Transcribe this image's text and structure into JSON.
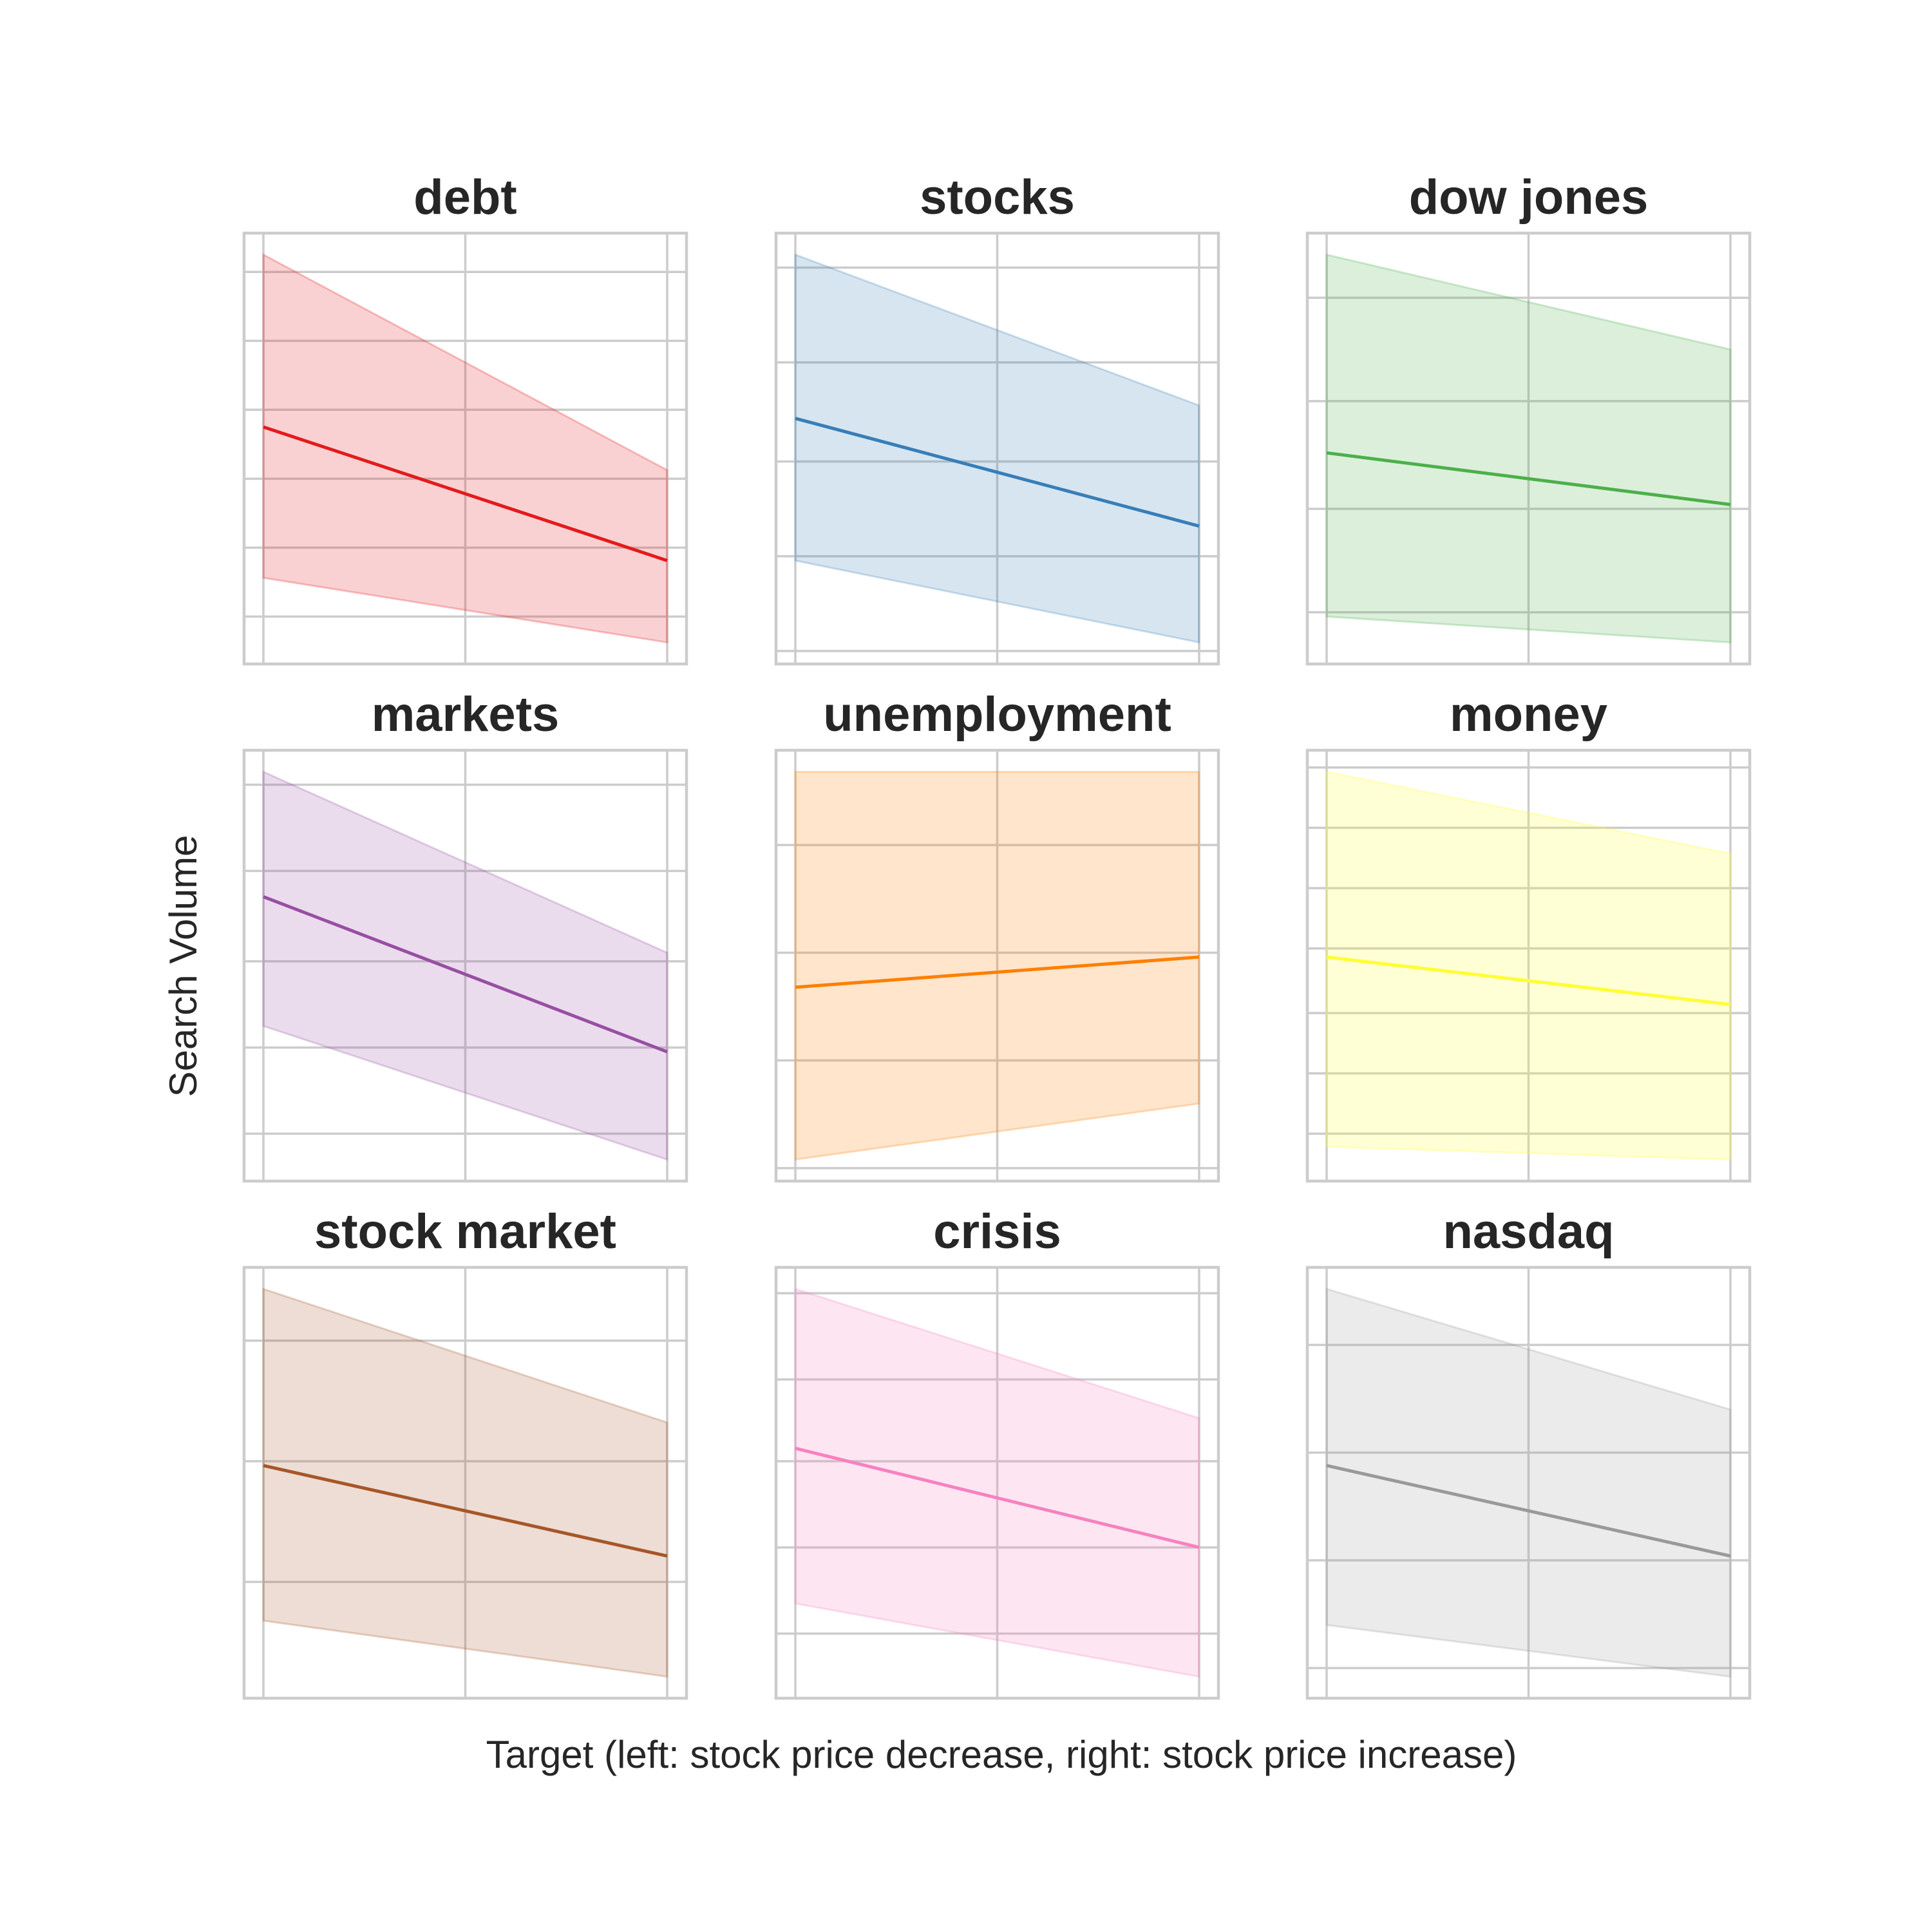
{
  "chart_data": {
    "type": "line",
    "xlabel": "Target (left: stock price decrease, right: stock price increase)",
    "ylabel": "Search Volume",
    "x": [
      0,
      1
    ],
    "grid": true,
    "panels": [
      {
        "title": "debt",
        "color": "#e41a1c",
        "ylim": [
          0.0,
          1.0
        ],
        "yticks": [
          0.11,
          0.27,
          0.43,
          0.59,
          0.75,
          0.91
        ],
        "mean": [
          0.55,
          0.24
        ],
        "lower": [
          0.2,
          0.05
        ],
        "upper": [
          0.95,
          0.45
        ]
      },
      {
        "title": "stocks",
        "color": "#377eb8",
        "ylim": [
          0.0,
          1.0
        ],
        "yticks": [
          0.03,
          0.25,
          0.47,
          0.7,
          0.92
        ],
        "mean": [
          0.57,
          0.32
        ],
        "lower": [
          0.24,
          0.05
        ],
        "upper": [
          0.95,
          0.6
        ]
      },
      {
        "title": "dow jones",
        "color": "#4daf4a",
        "ylim": [
          0.0,
          1.0
        ],
        "yticks": [
          0.12,
          0.36,
          0.61,
          0.85
        ],
        "mean": [
          0.49,
          0.37
        ],
        "lower": [
          0.11,
          0.05
        ],
        "upper": [
          0.95,
          0.73
        ]
      },
      {
        "title": "markets",
        "color": "#984ea3",
        "ylim": [
          0.0,
          1.0
        ],
        "yticks": [
          0.11,
          0.31,
          0.51,
          0.72,
          0.92
        ],
        "mean": [
          0.66,
          0.3
        ],
        "lower": [
          0.36,
          0.05
        ],
        "upper": [
          0.95,
          0.53
        ]
      },
      {
        "title": "unemployment",
        "color": "#ff7f00",
        "ylim": [
          0.0,
          1.0
        ],
        "yticks": [
          0.03,
          0.28,
          0.53,
          0.78
        ],
        "mean": [
          0.45,
          0.52
        ],
        "lower": [
          0.05,
          0.18
        ],
        "upper": [
          0.95,
          0.95
        ]
      },
      {
        "title": "money",
        "color": "#ffff33",
        "ylim": [
          0.0,
          1.0
        ],
        "yticks": [
          0.11,
          0.25,
          0.39,
          0.54,
          0.68,
          0.82,
          0.96
        ],
        "mean": [
          0.52,
          0.41
        ],
        "lower": [
          0.08,
          0.05
        ],
        "upper": [
          0.95,
          0.76
        ]
      },
      {
        "title": "stock market",
        "color": "#a65628",
        "ylim": [
          0.0,
          1.0
        ],
        "yticks": [
          0.27,
          0.55,
          0.83
        ],
        "mean": [
          0.54,
          0.33
        ],
        "lower": [
          0.18,
          0.05
        ],
        "upper": [
          0.95,
          0.64
        ]
      },
      {
        "title": "crisis",
        "color": "#f781bf",
        "ylim": [
          0.0,
          1.0
        ],
        "yticks": [
          0.15,
          0.35,
          0.55,
          0.74,
          0.94
        ],
        "mean": [
          0.58,
          0.35
        ],
        "lower": [
          0.22,
          0.05
        ],
        "upper": [
          0.95,
          0.65
        ]
      },
      {
        "title": "nasdaq",
        "color": "#999999",
        "ylim": [
          0.0,
          1.0
        ],
        "yticks": [
          0.07,
          0.32,
          0.57,
          0.82
        ],
        "mean": [
          0.54,
          0.33
        ],
        "lower": [
          0.17,
          0.05
        ],
        "upper": [
          0.95,
          0.67
        ]
      }
    ]
  }
}
